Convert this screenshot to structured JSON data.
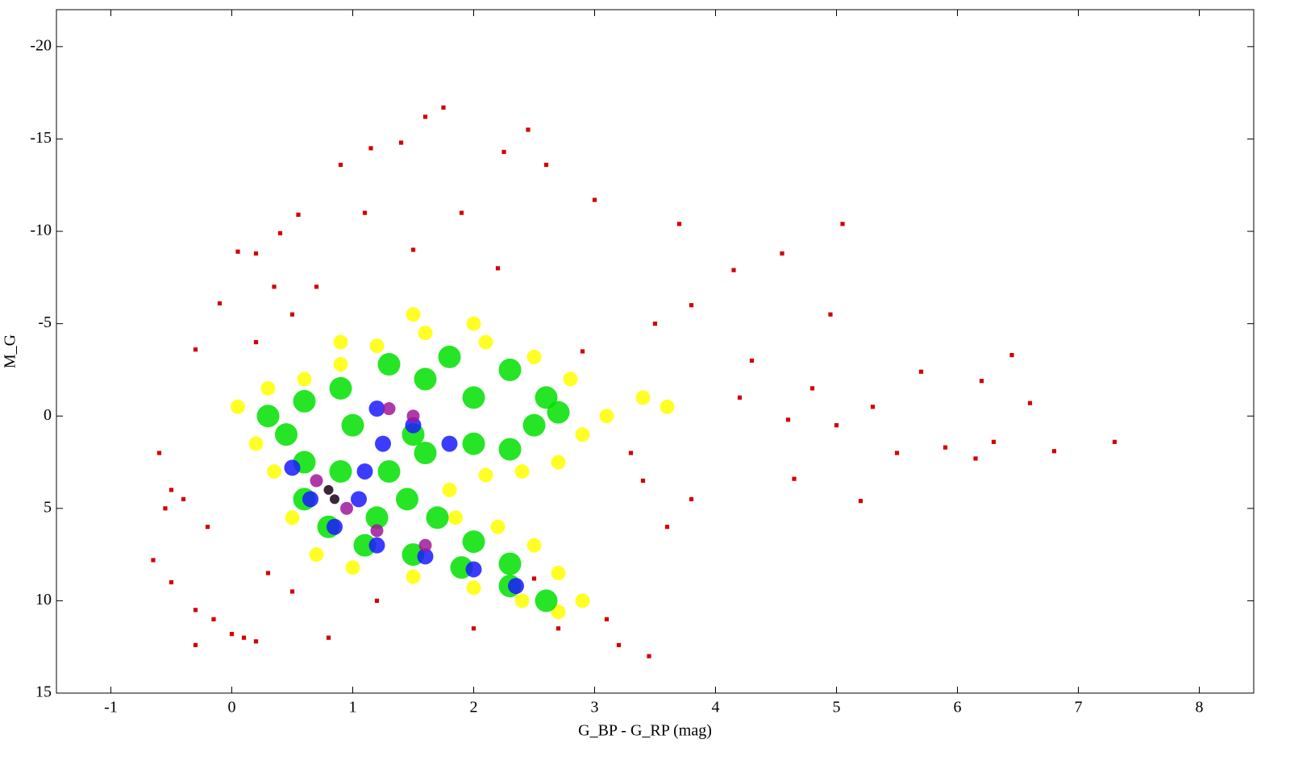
{
  "chart_data": {
    "type": "scatter",
    "x_label": "G_BP - G_RP (mag)",
    "y_label": "M_G",
    "xlim": [
      -1.45,
      8.45
    ],
    "ylim": [
      -22,
      15
    ],
    "invert_y": true,
    "xticks": [
      -1,
      0,
      1,
      2,
      3,
      4,
      5,
      6,
      7,
      8
    ],
    "yticks": [
      -20,
      -15,
      -10,
      -5,
      0,
      5,
      10,
      15
    ],
    "series": [
      {
        "color": "#d40000",
        "x": [
          -0.6,
          -0.5,
          -0.4,
          -0.55,
          -0.65,
          -0.5,
          -0.3,
          -0.15,
          0,
          0.1,
          -0.3,
          0.2,
          0.4,
          0.55,
          0.9,
          1.15,
          1.4,
          1.6,
          1.75,
          2.45,
          2.25,
          2.6,
          3,
          3.7,
          5.05,
          4.15,
          4.55,
          4.95,
          6.45,
          5.7,
          6.2,
          6.6,
          6.8,
          7.3,
          6.3,
          6.15,
          5.9,
          5.2,
          4.65,
          3.45,
          3.2,
          2.7,
          3.1,
          2,
          0.8,
          0.2,
          0.05,
          -0.1,
          -0.3,
          0.35,
          3.5,
          3.8,
          4.3,
          4.8,
          5.3,
          5.5,
          3.8,
          3.6,
          2.5,
          1.2,
          0.3,
          0.5,
          -0.2,
          2.9,
          2.2,
          1.1,
          1.9,
          1.5,
          0.7,
          0.2,
          0.5,
          4.2,
          4.6,
          5,
          3.3,
          3.4
        ],
        "y": [
          2,
          4,
          4.5,
          5,
          7.8,
          9,
          10.5,
          11,
          11.8,
          12,
          12.4,
          12.2,
          -9.9,
          -10.9,
          -13.6,
          -14.5,
          -14.8,
          -16.2,
          -16.7,
          -15.5,
          -14.3,
          -13.6,
          -11.7,
          -10.4,
          -10.4,
          -7.9,
          -8.8,
          -5.5,
          -3.3,
          -2.4,
          -1.9,
          -0.7,
          1.9,
          1.4,
          1.4,
          2.3,
          1.7,
          4.6,
          3.4,
          13,
          12.4,
          11.5,
          11,
          11.5,
          12,
          -8.8,
          -8.9,
          -6.1,
          -3.6,
          -7,
          -5,
          -6,
          -3,
          -1.5,
          -0.5,
          2,
          4.5,
          6,
          8.8,
          10,
          8.5,
          9.5,
          6,
          -3.5,
          -8,
          -11,
          -11,
          -9,
          -7,
          -4,
          -5.5,
          -1,
          0.2,
          0.5,
          2,
          3.5
        ]
      },
      {
        "color": "#ffff00",
        "x": [
          0.05,
          0.2,
          0.35,
          0.5,
          0.7,
          1.0,
          1.5,
          2,
          2.4,
          2.7,
          2.9,
          2.7,
          2.5,
          2.2,
          1.85,
          1.8,
          2.1,
          2.4,
          2.7,
          2.9,
          3.1,
          3.4,
          2.8,
          2.5,
          2.1,
          1.6,
          1.2,
          0.9,
          0.6,
          0.3,
          3.6,
          2,
          1.5,
          0.9
        ],
        "y": [
          -0.5,
          1.5,
          3,
          5.5,
          7.5,
          8.2,
          8.7,
          9.3,
          10,
          10.6,
          10,
          8.5,
          7,
          6,
          5.5,
          4,
          3.2,
          3,
          2.5,
          1,
          0,
          -1,
          -2,
          -3.2,
          -4,
          -4.5,
          -3.8,
          -2.8,
          -2,
          -1.5,
          -0.5,
          -5,
          -5.5,
          -4
        ]
      },
      {
        "color": "#00e000",
        "x": [
          0.3,
          0.45,
          0.6,
          0.6,
          0.8,
          1.1,
          1.5,
          1.9,
          2.3,
          2.6,
          2.3,
          2,
          1.7,
          1.45,
          1.3,
          1.6,
          2,
          2.3,
          2.5,
          2.6,
          2.3,
          1.8,
          1.3,
          0.9,
          0.6,
          1,
          1.5,
          2,
          0.9,
          1.2,
          2.7,
          1.6
        ],
        "y": [
          0,
          1,
          2.5,
          4.5,
          6,
          7,
          7.5,
          8.2,
          9.2,
          10,
          8,
          6.8,
          5.5,
          4.5,
          3,
          2,
          1.5,
          1.8,
          0.5,
          -1,
          -2.5,
          -3.2,
          -2.8,
          -1.5,
          -0.8,
          0.5,
          1,
          -1,
          3,
          5.5,
          -0.2,
          -2
        ]
      },
      {
        "color": "#1a1aff",
        "x": [
          0.5,
          0.65,
          0.85,
          1.2,
          1.6,
          2,
          2.35,
          1.1,
          1.25,
          1.2,
          1.5,
          1.8,
          1.05
        ],
        "y": [
          2.8,
          4.5,
          6,
          7,
          7.6,
          8.3,
          9.2,
          3,
          1.5,
          -0.4,
          0.5,
          1.5,
          4.5
        ]
      },
      {
        "color": "#a0189a",
        "x": [
          0.7,
          0.95,
          1.2,
          1.6,
          1.3,
          1.5
        ],
        "y": [
          3.5,
          5,
          6.2,
          7,
          -0.4,
          0
        ]
      },
      {
        "color": "#1a001a",
        "x": [
          0.8,
          0.85
        ],
        "y": [
          4,
          4.5
        ]
      }
    ]
  }
}
